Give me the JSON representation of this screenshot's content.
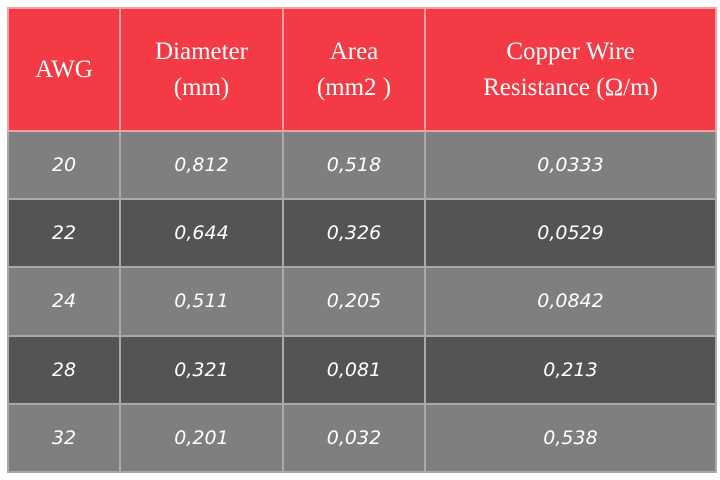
{
  "table": {
    "header": [
      "AWG",
      "Diameter\n(mm)",
      "Area\n(mm2 )",
      "Copper Wire\nResistance (Ω/m)"
    ],
    "rows": [
      [
        "20",
        "0,812",
        "0,518",
        "0,0333"
      ],
      [
        "22",
        "0,644",
        "0,326",
        "0,0529"
      ],
      [
        "24",
        "0,511",
        "0,205",
        "0,0842"
      ],
      [
        "28",
        "0,321",
        "0,081",
        "0,213"
      ],
      [
        "32",
        "0,201",
        "0,032",
        "0,538"
      ]
    ]
  }
}
